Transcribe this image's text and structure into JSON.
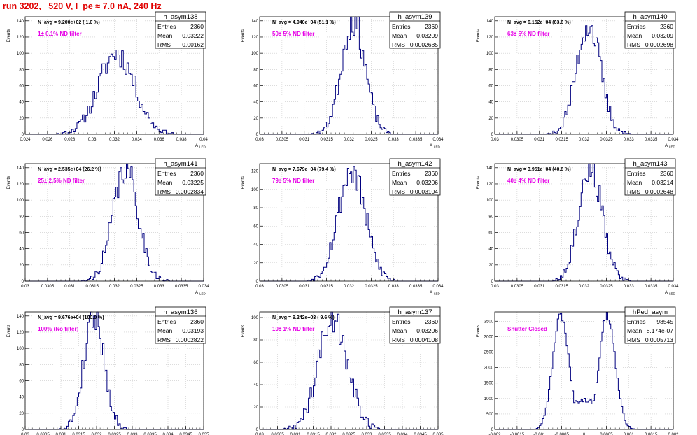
{
  "page_title": "run 3202,   520 V, I_pe ≈ 7.0 nA, 240 Hz",
  "axis_title_x": "A",
  "axis_title_x_sub": "LED",
  "axis_title_y": "Events",
  "stats_labels": [
    "Entries",
    "Mean",
    "RMS"
  ],
  "colors": {
    "histogram": "#00007f",
    "title": "#e00000",
    "filter_label": "#e600e6",
    "grid": "#c8c8c8"
  },
  "chart_data": [
    {
      "type": "histogram",
      "name": "h_asym138",
      "navg": "N_avg = 9.200e+02 ( 1.0 %)",
      "filter_label": "1± 0.1% ND filter",
      "stats": {
        "entries": "2360",
        "mean": "0.03222",
        "rms": "0.00162"
      },
      "xlim": [
        0.024,
        0.04
      ],
      "ylim": [
        0,
        145
      ],
      "xticks": [
        "0.024",
        "0.026",
        "0.028",
        "0.03",
        "0.032",
        "0.034",
        "0.036",
        "0.038",
        "0.04"
      ],
      "yticks": [
        "0",
        "20",
        "40",
        "60",
        "80",
        "100",
        "120",
        "140"
      ],
      "dist": {
        "mu": 0.0322,
        "sigma": 0.00162,
        "peak": 100,
        "seed": 11,
        "nbins": 100
      }
    },
    {
      "type": "histogram",
      "name": "h_asym139",
      "navg": "N_avg = 4.940e+04 (51.1 %)",
      "filter_label": "50± 5% ND filter",
      "stats": {
        "entries": "2360",
        "mean": "0.03209",
        "rms": "0.0002685"
      },
      "xlim": [
        0.03,
        0.034
      ],
      "ylim": [
        0,
        145
      ],
      "xticks": [
        "0.03",
        "0.0305",
        "0.031",
        "0.0315",
        "0.032",
        "0.0325",
        "0.033",
        "0.0335",
        "0.034"
      ],
      "yticks": [
        "0",
        "20",
        "40",
        "60",
        "80",
        "100",
        "120",
        "140"
      ],
      "dist": {
        "mu": 0.0321,
        "sigma": 0.000268,
        "peak": 140,
        "seed": 23,
        "nbins": 120
      }
    },
    {
      "type": "histogram",
      "name": "h_asym140",
      "navg": "N_avg = 6.152e+04 (63.6 %)",
      "filter_label": "63± 5% ND filter",
      "stats": {
        "entries": "2360",
        "mean": "0.03209",
        "rms": "0.0002698"
      },
      "xlim": [
        0.03,
        0.034
      ],
      "ylim": [
        0,
        145
      ],
      "xticks": [
        "0.03",
        "0.0305",
        "0.031",
        "0.0315",
        "0.032",
        "0.0325",
        "0.033",
        "0.0335",
        "0.034"
      ],
      "yticks": [
        "0",
        "20",
        "40",
        "60",
        "80",
        "100",
        "120",
        "140"
      ],
      "dist": {
        "mu": 0.0321,
        "sigma": 0.00027,
        "peak": 136,
        "seed": 37,
        "nbins": 120
      }
    },
    {
      "type": "histogram",
      "name": "h_asym141",
      "navg": "N_avg = 2.535e+04 (26.2 %)",
      "filter_label": "25± 2.5% ND filter",
      "stats": {
        "entries": "2360",
        "mean": "0.03225",
        "rms": "0.0002834"
      },
      "xlim": [
        0.03,
        0.034
      ],
      "ylim": [
        0,
        145
      ],
      "xticks": [
        "0.03",
        "0.0305",
        "0.031",
        "0.0315",
        "0.032",
        "0.0325",
        "0.033",
        "0.0335",
        "0.034"
      ],
      "yticks": [
        "0",
        "20",
        "40",
        "60",
        "80",
        "100",
        "120",
        "140"
      ],
      "dist": {
        "mu": 0.03225,
        "sigma": 0.000283,
        "peak": 138,
        "seed": 41,
        "nbins": 120
      }
    },
    {
      "type": "histogram",
      "name": "h_asym142",
      "navg": "N_avg = 7.679e+04 (79.4 %)",
      "filter_label": "79± 5% ND filter",
      "stats": {
        "entries": "2360",
        "mean": "0.03206",
        "rms": "0.0003104"
      },
      "xlim": [
        0.03,
        0.034
      ],
      "ylim": [
        0,
        128
      ],
      "xticks": [
        "0.03",
        "0.0305",
        "0.031",
        "0.0315",
        "0.032",
        "0.0325",
        "0.033",
        "0.0335",
        "0.034"
      ],
      "yticks": [
        "0",
        "20",
        "40",
        "60",
        "80",
        "100",
        "120"
      ],
      "dist": {
        "mu": 0.03206,
        "sigma": 0.00031,
        "peak": 120,
        "seed": 53,
        "nbins": 120
      }
    },
    {
      "type": "histogram",
      "name": "h_asym143",
      "navg": "N_avg = 3.951e+04 (40.8 %)",
      "filter_label": "40± 4% ND filter",
      "stats": {
        "entries": "2360",
        "mean": "0.03214",
        "rms": "0.0002648"
      },
      "xlim": [
        0.03,
        0.034
      ],
      "ylim": [
        0,
        145
      ],
      "xticks": [
        "0.03",
        "0.0305",
        "0.031",
        "0.0315",
        "0.032",
        "0.0325",
        "0.033",
        "0.0335",
        "0.034"
      ],
      "yticks": [
        "0",
        "20",
        "40",
        "60",
        "80",
        "100",
        "120",
        "140"
      ],
      "dist": {
        "mu": 0.03214,
        "sigma": 0.000265,
        "peak": 140,
        "seed": 67,
        "nbins": 120
      }
    },
    {
      "type": "histogram",
      "name": "h_asym136",
      "navg": "N_avg = 9.676e+04 (100.0 %)",
      "filter_label": "100% (No filter)",
      "stats": {
        "entries": "2360",
        "mean": "0.03193",
        "rms": "0.0002822"
      },
      "xlim": [
        0.03,
        0.035
      ],
      "ylim": [
        0,
        145
      ],
      "xticks": [
        "0.03",
        "0.0305",
        "0.031",
        "0.0315",
        "0.032",
        "0.0325",
        "0.033",
        "0.0335",
        "0.034",
        "0.0345",
        "0.035"
      ],
      "yticks": [
        "0",
        "20",
        "40",
        "60",
        "80",
        "100",
        "120",
        "140"
      ],
      "dist": {
        "mu": 0.03193,
        "sigma": 0.000282,
        "peak": 142,
        "seed": 79,
        "nbins": 120
      }
    },
    {
      "type": "histogram",
      "name": "h_asym137",
      "navg": "N_avg = 9.242e+03 ( 9.6 %)",
      "filter_label": "10± 1% ND filter",
      "stats": {
        "entries": "2360",
        "mean": "0.03206",
        "rms": "0.0004108"
      },
      "xlim": [
        0.03,
        0.035
      ],
      "ylim": [
        0,
        105
      ],
      "xticks": [
        "0.03",
        "0.0305",
        "0.031",
        "0.0315",
        "0.032",
        "0.0325",
        "0.033",
        "0.0335",
        "0.034",
        "0.0345",
        "0.035"
      ],
      "yticks": [
        "0",
        "20",
        "40",
        "60",
        "80",
        "100"
      ],
      "dist": {
        "mu": 0.03206,
        "sigma": 0.00041,
        "peak": 100,
        "seed": 89,
        "nbins": 110
      }
    },
    {
      "type": "histogram",
      "name": "hPed_asym",
      "navg": "",
      "filter_label": "Shutter Closed",
      "stats": {
        "entries": "98545",
        "mean": "8.174e-07",
        "rms": "0.0005713"
      },
      "xlim": [
        -0.002,
        0.002
      ],
      "ylim": [
        0,
        3800
      ],
      "xticks": [
        "-0.002",
        "-0.0015",
        "-0.001",
        "-0.0005",
        "0",
        "0.0005",
        "0.001",
        "0.0015",
        "0.002"
      ],
      "yticks": [
        "0",
        "500",
        "1000",
        "1500",
        "2000",
        "2500",
        "3000",
        "3500"
      ],
      "dist": {
        "bimodal": true,
        "mu1": -0.00052,
        "mu2": 0.00052,
        "sigma": 0.00018,
        "peak": 3700,
        "floor": 950,
        "seed": 97,
        "nbins": 120
      }
    }
  ]
}
